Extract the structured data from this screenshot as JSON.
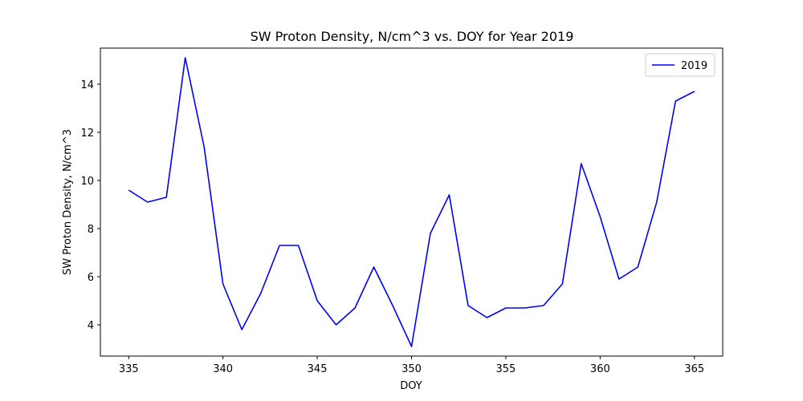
{
  "chart_data": {
    "type": "line",
    "title": "SW Proton Density, N/cm^3  vs. DOY for Year 2019",
    "xlabel": "DOY",
    "ylabel": "SW Proton Density, N/cm^3",
    "xlim": [
      333.5,
      366.5
    ],
    "ylim": [
      2.7,
      15.5
    ],
    "xticks": [
      335,
      340,
      345,
      350,
      355,
      360,
      365
    ],
    "yticks": [
      4,
      6,
      8,
      10,
      12,
      14
    ],
    "grid": false,
    "legend_position": "top-right",
    "series": [
      {
        "name": "2019",
        "color": "#0000ff",
        "x": [
          335,
          336,
          337,
          338,
          339,
          340,
          341,
          342,
          343,
          344,
          345,
          346,
          347,
          348,
          349,
          350,
          351,
          352,
          353,
          354,
          355,
          356,
          357,
          358,
          359,
          360,
          361,
          362,
          363,
          364,
          365
        ],
        "y": [
          9.6,
          9.1,
          9.3,
          15.1,
          11.4,
          5.7,
          3.8,
          5.3,
          7.3,
          7.3,
          5.0,
          4.0,
          4.7,
          6.4,
          4.8,
          3.1,
          7.8,
          9.4,
          4.8,
          4.3,
          4.7,
          4.7,
          4.8,
          5.7,
          10.7,
          8.5,
          5.9,
          6.4,
          9.1,
          13.3,
          13.7
        ]
      }
    ]
  }
}
